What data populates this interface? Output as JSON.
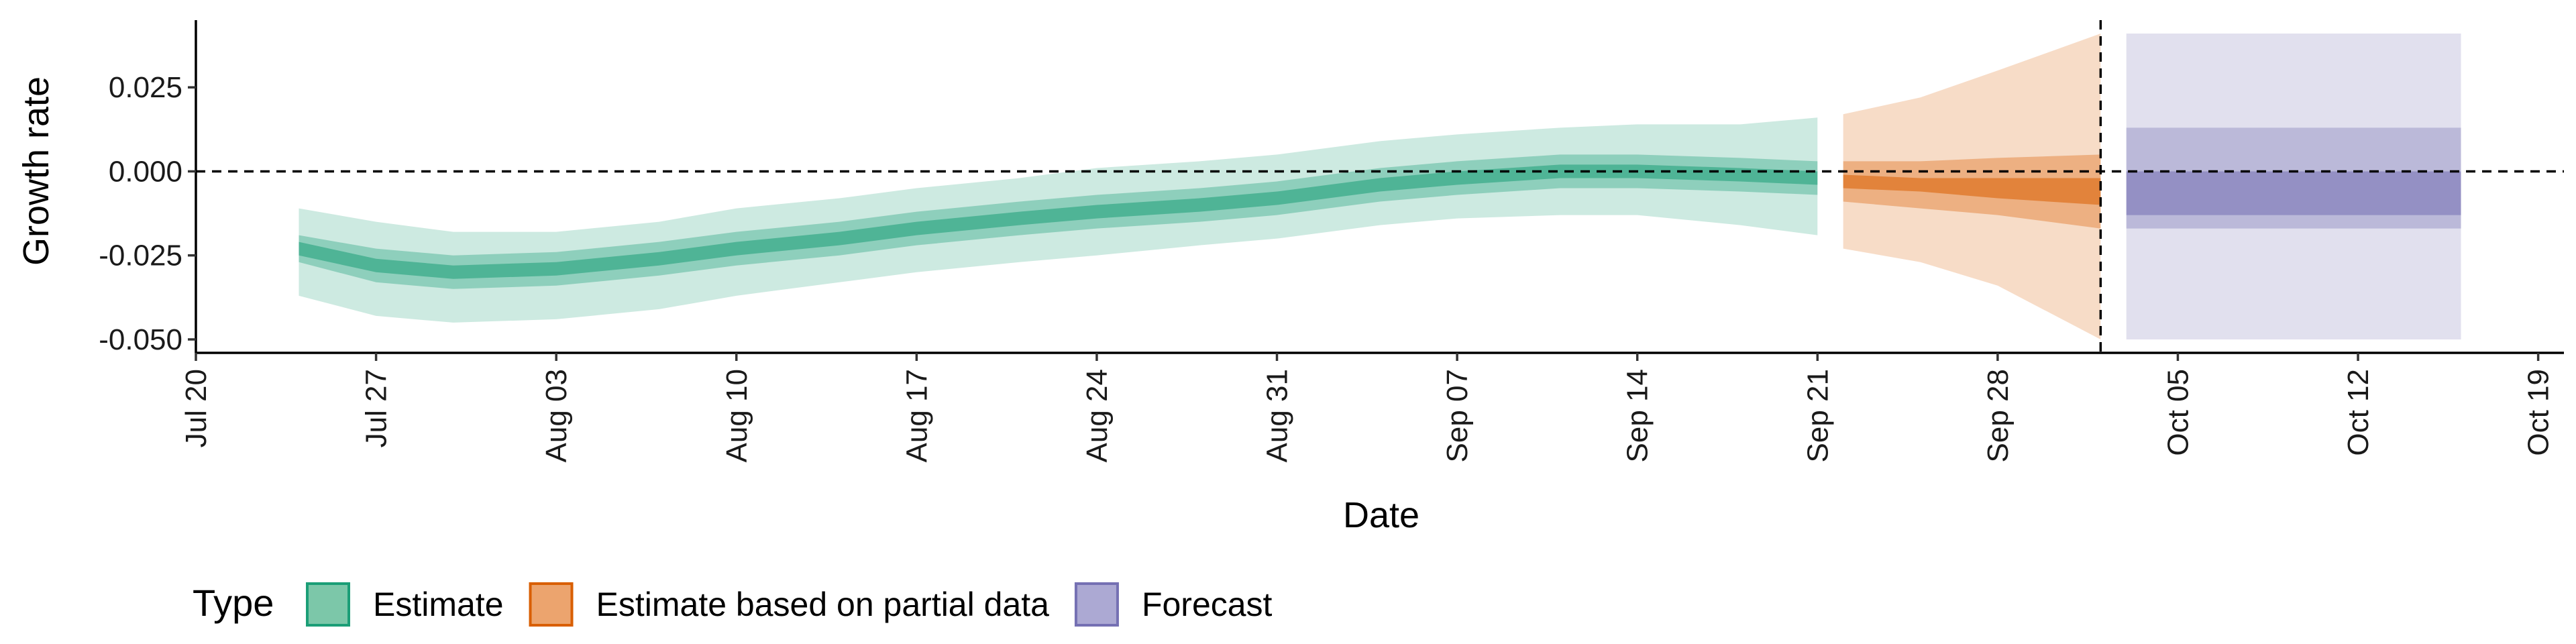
{
  "chart_data": {
    "type": "area",
    "xlabel": "Date",
    "ylabel": "Growth rate",
    "x_ticks": [
      {
        "date": "2020-07-20",
        "label": "Jul 20"
      },
      {
        "date": "2020-07-27",
        "label": "Jul 27"
      },
      {
        "date": "2020-08-03",
        "label": "Aug 03"
      },
      {
        "date": "2020-08-10",
        "label": "Aug 10"
      },
      {
        "date": "2020-08-17",
        "label": "Aug 17"
      },
      {
        "date": "2020-08-24",
        "label": "Aug 24"
      },
      {
        "date": "2020-08-31",
        "label": "Aug 31"
      },
      {
        "date": "2020-09-07",
        "label": "Sep 07"
      },
      {
        "date": "2020-09-14",
        "label": "Sep 14"
      },
      {
        "date": "2020-09-21",
        "label": "Sep 21"
      },
      {
        "date": "2020-09-28",
        "label": "Sep 28"
      },
      {
        "date": "2020-10-05",
        "label": "Oct 05"
      },
      {
        "date": "2020-10-12",
        "label": "Oct 12"
      },
      {
        "date": "2020-10-19",
        "label": "Oct 19"
      }
    ],
    "y_ticks": [
      {
        "value": 0.025,
        "label": "0.025"
      },
      {
        "value": 0.0,
        "label": "0.000"
      },
      {
        "value": -0.025,
        "label": "-0.025"
      },
      {
        "value": -0.05,
        "label": "-0.050"
      }
    ],
    "xlim": [
      "2020-07-20",
      "2020-10-20"
    ],
    "ylim": [
      -0.054,
      0.045
    ],
    "hline_y": 0.0,
    "vline_date": "2020-10-02",
    "legend": {
      "title": "Type",
      "position": "bottom",
      "items": [
        {
          "label": "Estimate",
          "fill": "#7cc7a9",
          "stroke": "#1b9e77"
        },
        {
          "label": "Estimate based on partial data",
          "fill": "#eca46e",
          "stroke": "#d95f02"
        },
        {
          "label": "Forecast",
          "fill": "#aca9d3",
          "stroke": "#7570b3"
        }
      ]
    },
    "series": [
      {
        "name": "Estimate",
        "color": "#1b9e77",
        "points": [
          {
            "date": "2020-07-24",
            "median": -0.023,
            "lo20": -0.025,
            "hi20": -0.021,
            "lo50": -0.027,
            "hi50": -0.019,
            "lo90": -0.037,
            "hi90": -0.011
          },
          {
            "date": "2020-07-27",
            "median": -0.028,
            "lo20": -0.03,
            "hi20": -0.026,
            "lo50": -0.033,
            "hi50": -0.023,
            "lo90": -0.043,
            "hi90": -0.015
          },
          {
            "date": "2020-07-30",
            "median": -0.03,
            "lo20": -0.032,
            "hi20": -0.028,
            "lo50": -0.035,
            "hi50": -0.025,
            "lo90": -0.045,
            "hi90": -0.018
          },
          {
            "date": "2020-08-03",
            "median": -0.029,
            "lo20": -0.031,
            "hi20": -0.027,
            "lo50": -0.034,
            "hi50": -0.024,
            "lo90": -0.044,
            "hi90": -0.018
          },
          {
            "date": "2020-08-07",
            "median": -0.026,
            "lo20": -0.028,
            "hi20": -0.024,
            "lo50": -0.031,
            "hi50": -0.021,
            "lo90": -0.041,
            "hi90": -0.015
          },
          {
            "date": "2020-08-10",
            "median": -0.023,
            "lo20": -0.025,
            "hi20": -0.021,
            "lo50": -0.028,
            "hi50": -0.018,
            "lo90": -0.037,
            "hi90": -0.011
          },
          {
            "date": "2020-08-14",
            "median": -0.02,
            "lo20": -0.022,
            "hi20": -0.018,
            "lo50": -0.025,
            "hi50": -0.015,
            "lo90": -0.033,
            "hi90": -0.008
          },
          {
            "date": "2020-08-17",
            "median": -0.017,
            "lo20": -0.019,
            "hi20": -0.015,
            "lo50": -0.022,
            "hi50": -0.012,
            "lo90": -0.03,
            "hi90": -0.005
          },
          {
            "date": "2020-08-21",
            "median": -0.014,
            "lo20": -0.016,
            "hi20": -0.012,
            "lo50": -0.019,
            "hi50": -0.009,
            "lo90": -0.027,
            "hi90": -0.002
          },
          {
            "date": "2020-08-24",
            "median": -0.012,
            "lo20": -0.014,
            "hi20": -0.01,
            "lo50": -0.017,
            "hi50": -0.007,
            "lo90": -0.025,
            "hi90": 0.001
          },
          {
            "date": "2020-08-28",
            "median": -0.01,
            "lo20": -0.012,
            "hi20": -0.008,
            "lo50": -0.015,
            "hi50": -0.005,
            "lo90": -0.022,
            "hi90": 0.003
          },
          {
            "date": "2020-08-31",
            "median": -0.008,
            "lo20": -0.01,
            "hi20": -0.006,
            "lo50": -0.013,
            "hi50": -0.003,
            "lo90": -0.02,
            "hi90": 0.005
          },
          {
            "date": "2020-09-04",
            "median": -0.004,
            "lo20": -0.006,
            "hi20": -0.002,
            "lo50": -0.009,
            "hi50": 0.001,
            "lo90": -0.016,
            "hi90": 0.009
          },
          {
            "date": "2020-09-07",
            "median": -0.002,
            "lo20": -0.004,
            "hi20": 0.0,
            "lo50": -0.007,
            "hi50": 0.003,
            "lo90": -0.014,
            "hi90": 0.011
          },
          {
            "date": "2020-09-11",
            "median": 0.0,
            "lo20": -0.002,
            "hi20": 0.002,
            "lo50": -0.005,
            "hi50": 0.005,
            "lo90": -0.013,
            "hi90": 0.013
          },
          {
            "date": "2020-09-14",
            "median": 0.0,
            "lo20": -0.002,
            "hi20": 0.002,
            "lo50": -0.005,
            "hi50": 0.005,
            "lo90": -0.013,
            "hi90": 0.014
          },
          {
            "date": "2020-09-18",
            "median": -0.001,
            "lo20": -0.003,
            "hi20": 0.001,
            "lo50": -0.006,
            "hi50": 0.004,
            "lo90": -0.016,
            "hi90": 0.014
          },
          {
            "date": "2020-09-21",
            "median": -0.002,
            "lo20": -0.004,
            "hi20": 0.0,
            "lo50": -0.007,
            "hi50": 0.003,
            "lo90": -0.019,
            "hi90": 0.016
          }
        ]
      },
      {
        "name": "Estimate based on partial data",
        "color": "#d95f02",
        "points": [
          {
            "date": "2020-09-22",
            "median": -0.003,
            "lo20": -0.005,
            "hi20": -0.001,
            "lo50": -0.009,
            "hi50": 0.003,
            "lo90": -0.023,
            "hi90": 0.017
          },
          {
            "date": "2020-09-25",
            "median": -0.004,
            "lo20": -0.006,
            "hi20": -0.002,
            "lo50": -0.011,
            "hi50": 0.003,
            "lo90": -0.027,
            "hi90": 0.022
          },
          {
            "date": "2020-09-28",
            "median": -0.005,
            "lo20": -0.008,
            "hi20": -0.002,
            "lo50": -0.013,
            "hi50": 0.004,
            "lo90": -0.034,
            "hi90": 0.03
          },
          {
            "date": "2020-10-02",
            "median": -0.006,
            "lo20": -0.01,
            "hi20": -0.002,
            "lo50": -0.017,
            "hi50": 0.005,
            "lo90": -0.05,
            "hi90": 0.041
          }
        ]
      },
      {
        "name": "Forecast",
        "color": "#7570b3",
        "points": [
          {
            "date": "2020-10-03",
            "median": -0.003,
            "lo20": -0.013,
            "hi20": 0.0,
            "lo50": -0.017,
            "hi50": 0.013,
            "lo90": -0.05,
            "hi90": 0.041
          },
          {
            "date": "2020-10-16",
            "median": -0.003,
            "lo20": -0.013,
            "hi20": 0.0,
            "lo50": -0.017,
            "hi50": 0.013,
            "lo90": -0.05,
            "hi90": 0.041
          }
        ]
      }
    ]
  }
}
